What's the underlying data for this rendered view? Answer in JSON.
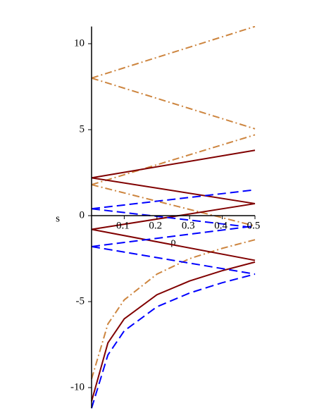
{
  "chart_data": {
    "type": "line",
    "xlabel": "ρ",
    "ylabel": "s",
    "xlim": [
      0,
      0.5
    ],
    "ylim": [
      -11.2,
      11.0
    ],
    "xticks": [
      0.1,
      0.2,
      0.3,
      0.4,
      0.5
    ],
    "yticks": [
      10,
      5,
      0,
      -5,
      -10
    ],
    "series": [
      {
        "color": "#cd853f",
        "style": "dashdot",
        "x": [
          0,
          0.5
        ],
        "values": [
          8,
          11.0
        ]
      },
      {
        "color": "#cd853f",
        "style": "dashdot",
        "x": [
          0,
          0.5
        ],
        "values": [
          8,
          5.05
        ]
      },
      {
        "color": "#cd853f",
        "style": "dashdot",
        "x": [
          0,
          0.5
        ],
        "values": [
          1.8,
          4.7
        ]
      },
      {
        "color": "#cd853f",
        "style": "dashdot",
        "x": [
          0,
          0.5
        ],
        "values": [
          1.8,
          -0.6
        ]
      },
      {
        "color": "#cd853f",
        "style": "dashdot",
        "x": [
          0,
          0.05,
          0.1,
          0.2,
          0.3,
          0.4,
          0.5
        ],
        "values": [
          -9.5,
          -6.3,
          -4.9,
          -3.4,
          -2.5,
          -1.9,
          -1.4
        ]
      },
      {
        "color": "#800000",
        "style": "solid",
        "x": [
          0,
          0.5
        ],
        "values": [
          2.2,
          3.8
        ]
      },
      {
        "color": "#800000",
        "style": "solid",
        "x": [
          0,
          0.5
        ],
        "values": [
          2.2,
          0.7
        ]
      },
      {
        "color": "#800000",
        "style": "solid",
        "x": [
          0,
          0.5
        ],
        "values": [
          -0.8,
          0.7
        ]
      },
      {
        "color": "#800000",
        "style": "solid",
        "x": [
          0,
          0.5
        ],
        "values": [
          -0.8,
          -2.6
        ]
      },
      {
        "color": "#800000",
        "style": "solid",
        "x": [
          0,
          0.05,
          0.1,
          0.2,
          0.3,
          0.4,
          0.5
        ],
        "values": [
          -10.8,
          -7.4,
          -6.0,
          -4.6,
          -3.8,
          -3.2,
          -2.7
        ]
      },
      {
        "color": "#0000ff",
        "style": "dashed",
        "x": [
          0,
          0.5
        ],
        "values": [
          0.4,
          1.5
        ]
      },
      {
        "color": "#0000ff",
        "style": "dashed",
        "x": [
          0,
          0.5
        ],
        "values": [
          0.4,
          -0.7
        ]
      },
      {
        "color": "#0000ff",
        "style": "dashed",
        "x": [
          0,
          0.5
        ],
        "values": [
          -1.8,
          -0.6
        ]
      },
      {
        "color": "#0000ff",
        "style": "dashed",
        "x": [
          0,
          0.5
        ],
        "values": [
          -1.8,
          -3.4
        ]
      },
      {
        "color": "#0000ff",
        "style": "dashed",
        "x": [
          0,
          0.05,
          0.1,
          0.2,
          0.3,
          0.4,
          0.5
        ],
        "values": [
          -11.2,
          -8.1,
          -6.7,
          -5.3,
          -4.5,
          -3.9,
          -3.4
        ]
      }
    ]
  }
}
